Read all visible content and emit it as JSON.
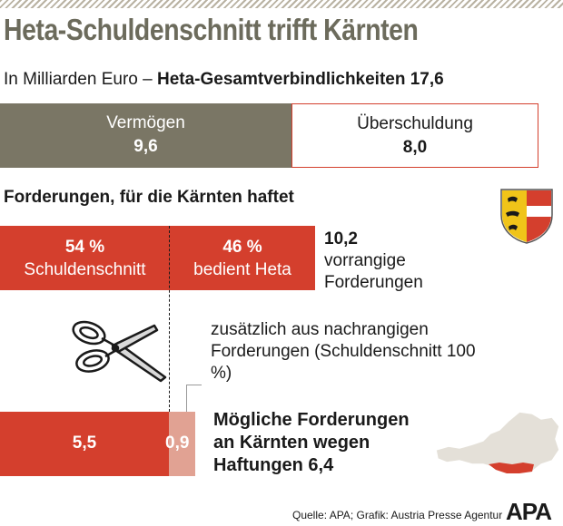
{
  "header": {
    "title": "Heta-Schuldenschnitt trifft Kärnten",
    "subtitle_prefix": "In Milliarden Euro –",
    "subtitle_bold": "Heta-Gesamtverbindlichkeiten 17,6"
  },
  "top_bar": {
    "left_label": "Vermögen",
    "left_value": "9,6",
    "right_label": "Überschuldung",
    "right_value": "8,0"
  },
  "section": {
    "heading": "Forderungen, für die Kärnten haftet",
    "left_pct": "54 %",
    "left_label": "Schuldenschnitt",
    "right_pct": "46 %",
    "right_label": "bedient Heta",
    "total_value": "10,2",
    "total_label_1": "vorrangige",
    "total_label_2": "Forderungen",
    "extra_text": "zusätzlich aus nachrangigen Forderungen (Schuldenschnitt 100 %)"
  },
  "bottom_bar": {
    "value_main": "5,5",
    "value_small": "0,9",
    "caption_1": "Mögliche Forderungen",
    "caption_2": "an Kärnten wegen",
    "caption_3": "Haftungen 6,4"
  },
  "footer": {
    "source": "Quelle: APA; Grafik: Austria Presse Agentur",
    "logo": "APA"
  },
  "colors": {
    "olive": "#7a7665",
    "red": "#d43f2d",
    "pink": "#e1a293",
    "title": "#6c6b5c"
  },
  "icons": [
    "scissors-icon",
    "coat-of-arms-icon",
    "austria-map-icon",
    "apa-logo"
  ],
  "chart_data": [
    {
      "type": "bar",
      "categories": [
        "Vermögen",
        "Überschuldung"
      ],
      "values": [
        9.6,
        8.0
      ],
      "total": 17.6
    },
    {
      "type": "bar",
      "categories": [
        "Schuldenschnitt",
        "bedient Heta"
      ],
      "values": [
        54,
        46
      ],
      "total": 10.2
    },
    {
      "type": "bar",
      "values": [
        5.5,
        0.9
      ],
      "total": 6.4
    }
  ]
}
